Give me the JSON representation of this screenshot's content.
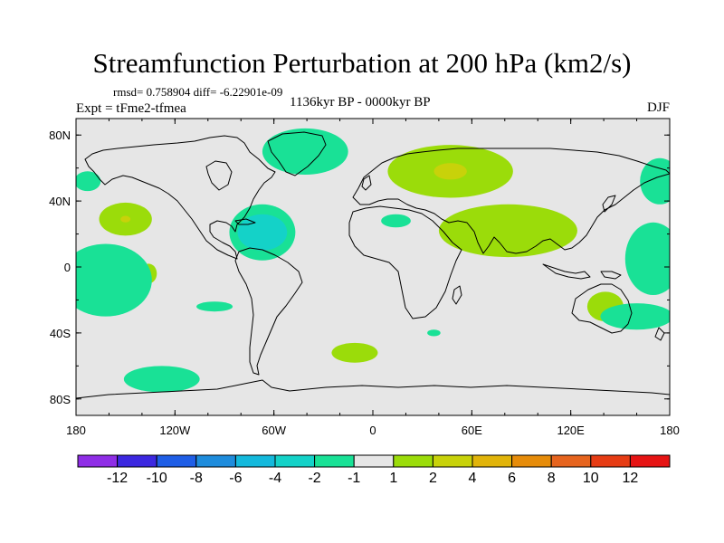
{
  "title": "Streamfunction Perturbation at 200 hPa (km2/s)",
  "stats": "rmsd= 0.758904 diff= -6.22901e-09",
  "experiment": "Expt = tFme2-tfmea",
  "period": "1136kyr BP - 0000kyr BP",
  "season": "DJF",
  "map": {
    "projection": "cylindrical equidistant",
    "lon_range": [
      -180,
      180
    ],
    "lat_range": [
      -90,
      90
    ],
    "ocean_land_fill": "#e6e6e6",
    "coastline_color": "#000000"
  },
  "axes": {
    "x_ticks": [
      {
        "value": -180,
        "label": "180"
      },
      {
        "value": -120,
        "label": "120W"
      },
      {
        "value": -60,
        "label": "60W"
      },
      {
        "value": 0,
        "label": "0"
      },
      {
        "value": 60,
        "label": "60E"
      },
      {
        "value": 120,
        "label": "120E"
      },
      {
        "value": 180,
        "label": "180"
      }
    ],
    "y_ticks": [
      {
        "value": 80,
        "label": "80N"
      },
      {
        "value": 40,
        "label": "40N"
      },
      {
        "value": 0,
        "label": "0"
      },
      {
        "value": -40,
        "label": "40S"
      },
      {
        "value": -80,
        "label": "80S"
      }
    ]
  },
  "colorbar": {
    "levels": [
      {
        "label": "-12",
        "color": "#8f2ee6"
      },
      {
        "label": "-10",
        "color": "#3c28e0"
      },
      {
        "label": "-8",
        "color": "#1f5ee6"
      },
      {
        "label": "-6",
        "color": "#1e8cdc"
      },
      {
        "label": "-4",
        "color": "#14b9dc"
      },
      {
        "label": "-2",
        "color": "#14d2c8"
      },
      {
        "label": "-1",
        "color": "#19e196"
      },
      {
        "label": "1",
        "color": "#e6e6e6"
      },
      {
        "label": "2",
        "color": "#9bdc0a"
      },
      {
        "label": "4",
        "color": "#c8d20a"
      },
      {
        "label": "6",
        "color": "#e1b40a"
      },
      {
        "label": "8",
        "color": "#e68c0a"
      },
      {
        "label": "10",
        "color": "#e6641e"
      },
      {
        "label": "12",
        "color": "#e63c14"
      },
      {
        "label": "",
        "color": "#e61414"
      }
    ]
  },
  "anomalies": [
    {
      "lon": -41,
      "lat": 70,
      "rlon": 26,
      "rlat": 14,
      "color": "#19e196",
      "name": "greenland"
    },
    {
      "lon": -173,
      "lat": 52,
      "rlon": 8,
      "rlat": 6,
      "color": "#19e196",
      "name": "n-pacific-west-edge"
    },
    {
      "lon": -150,
      "lat": 29,
      "rlon": 16,
      "rlat": 10,
      "color": "#9bdc0a",
      "name": "n-pacific"
    },
    {
      "lon": -150,
      "lat": 29,
      "rlon": 3,
      "rlat": 2,
      "color": "#c8d20a",
      "name": "n-pacific-core"
    },
    {
      "lon": -67,
      "lat": 21,
      "rlon": 20,
      "rlat": 17,
      "color": "#19e196",
      "name": "caribbean"
    },
    {
      "lon": -67,
      "lat": 21,
      "rlon": 15,
      "rlat": 11,
      "color": "#14d2c8",
      "name": "caribbean-core"
    },
    {
      "lon": 14,
      "lat": 28,
      "rlon": 9,
      "rlat": 4,
      "color": "#19e196",
      "name": "north-africa"
    },
    {
      "lon": 47,
      "lat": 58,
      "rlon": 38,
      "rlat": 16,
      "color": "#9bdc0a",
      "name": "eurasia"
    },
    {
      "lon": 47,
      "lat": 58,
      "rlon": 10,
      "rlat": 5,
      "color": "#c8d20a",
      "name": "eurasia-core"
    },
    {
      "lon": 82,
      "lat": 22,
      "rlon": 42,
      "rlat": 16,
      "color": "#9bdc0a",
      "name": "south-asia"
    },
    {
      "lon": 174,
      "lat": 52,
      "rlon": 12,
      "rlat": 14,
      "color": "#19e196",
      "name": "n-pacific-east"
    },
    {
      "lon": 170,
      "lat": 5,
      "rlon": 17,
      "rlat": 22,
      "color": "#19e196",
      "name": "w-pacific"
    },
    {
      "lon": -136,
      "lat": -4,
      "rlon": 5,
      "rlat": 6,
      "color": "#9bdc0a",
      "name": "equatorial-pacific"
    },
    {
      "lon": -162,
      "lat": -8,
      "rlon": 28,
      "rlat": 22,
      "color": "#19e196",
      "name": "s-pacific"
    },
    {
      "lon": -96,
      "lat": -24,
      "rlon": 11,
      "rlat": 3,
      "color": "#19e196",
      "name": "se-pacific"
    },
    {
      "lon": -11,
      "lat": -52,
      "rlon": 14,
      "rlat": 6,
      "color": "#9bdc0a",
      "name": "s-atlantic"
    },
    {
      "lon": -128,
      "lat": -68,
      "rlon": 23,
      "rlat": 8,
      "color": "#19e196",
      "name": "southern-ocean"
    },
    {
      "lon": 37,
      "lat": -40,
      "rlon": 4,
      "rlat": 2,
      "color": "#19e196",
      "name": "s-indian"
    },
    {
      "lon": 141,
      "lat": -24,
      "rlon": 11,
      "rlat": 9,
      "color": "#9bdc0a",
      "name": "australia"
    },
    {
      "lon": 160,
      "lat": -30,
      "rlon": 22,
      "rlat": 8,
      "color": "#19e196",
      "name": "tasman"
    }
  ]
}
